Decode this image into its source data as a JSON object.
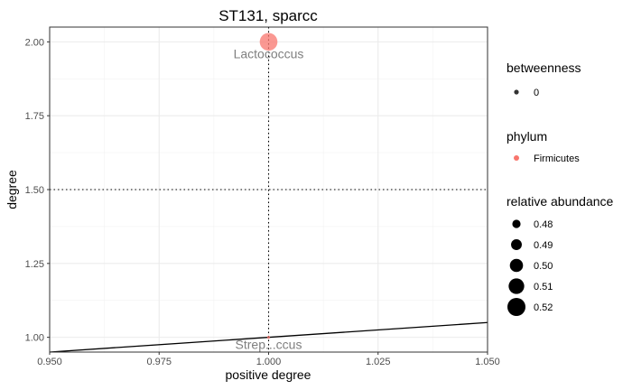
{
  "chart_data": {
    "type": "scatter",
    "title": "ST131, sparcc",
    "xlabel": "positive degree",
    "ylabel": "degree",
    "xlim": [
      0.95,
      1.05
    ],
    "ylim": [
      0.95,
      2.05
    ],
    "x_ticks": [
      "0.950",
      "0.975",
      "1.000",
      "1.025",
      "1.050"
    ],
    "x_tick_values": [
      0.95,
      0.975,
      1.0,
      1.025,
      1.05
    ],
    "y_ticks": [
      "1.00",
      "1.25",
      "1.50",
      "1.75",
      "2.00"
    ],
    "y_tick_values": [
      1.0,
      1.25,
      1.5,
      1.75,
      2.0
    ],
    "grid": true,
    "reference_lines": {
      "vline_x": 1.0,
      "hline_y": 1.5,
      "diagonal": "y = x"
    },
    "points": [
      {
        "label": "Lactococcus",
        "x": 1.0,
        "y": 2.0,
        "betweenness": 0,
        "phylum": "Firmicutes",
        "relative_abundance": 0.52,
        "color": "#F8766D"
      },
      {
        "label": "Strep...ccus",
        "x": 1.0,
        "y": 1.0,
        "betweenness": 0,
        "phylum": "Firmicutes",
        "relative_abundance": 0.48,
        "color": "#F8766D"
      }
    ],
    "legends": {
      "betweenness": {
        "title": "betweenness",
        "entries": [
          "0"
        ]
      },
      "phylum": {
        "title": "phylum",
        "entries": [
          "Firmicutes"
        ],
        "colors": [
          "#F8766D"
        ]
      },
      "relative_abundance": {
        "title": "relative abundance",
        "entries": [
          "0.48",
          "0.49",
          "0.50",
          "0.51",
          "0.52"
        ],
        "values": [
          0.48,
          0.49,
          0.5,
          0.51,
          0.52
        ]
      }
    }
  }
}
